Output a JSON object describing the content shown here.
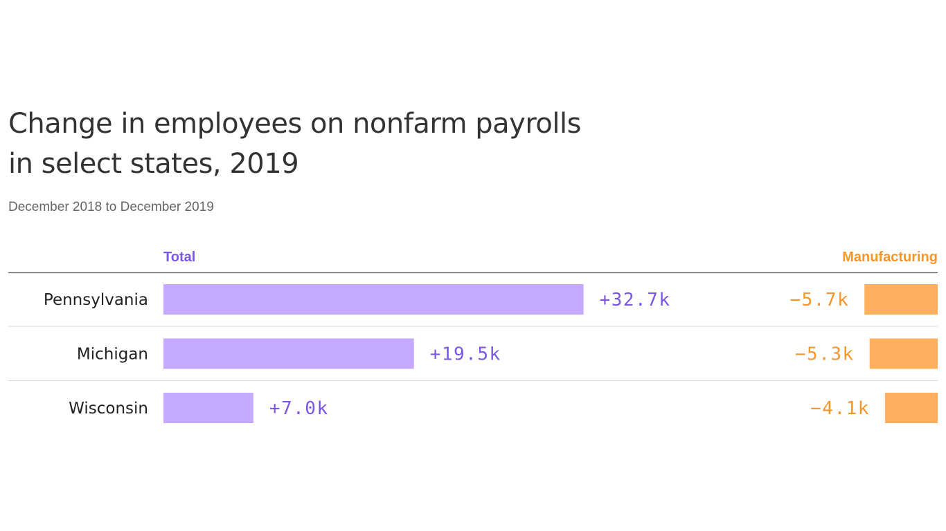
{
  "header": {
    "title_line1": "Change in employees on nonfarm payrolls",
    "title_line2": "in select states, 2019",
    "subtitle": "December 2018 to December 2019"
  },
  "colors": {
    "total_bar": "#c4a9ff",
    "total_text": "#7b55e6",
    "mfg_bar": "#ffb05e",
    "mfg_text": "#f5962a",
    "rule": "#555555",
    "divider": "#d8d8d8"
  },
  "chart_data": {
    "type": "bar",
    "title": "Change in employees on nonfarm payrolls in select states, 2019",
    "subtitle": "December 2018 to December 2019",
    "categories": [
      "Pennsylvania",
      "Michigan",
      "Wisconsin"
    ],
    "series": [
      {
        "name": "Total",
        "values": [
          32.7,
          19.5,
          7.0
        ],
        "labels": [
          "+32.7k",
          "+19.5k",
          "+7.0k"
        ],
        "direction": "left-to-right"
      },
      {
        "name": "Manufacturing",
        "values": [
          -5.7,
          -5.3,
          -4.1
        ],
        "labels": [
          "−5.7k",
          "−5.3k",
          "−4.1k"
        ],
        "direction": "right-to-left"
      }
    ],
    "units": "thousands of employees",
    "legend": "column headers"
  }
}
